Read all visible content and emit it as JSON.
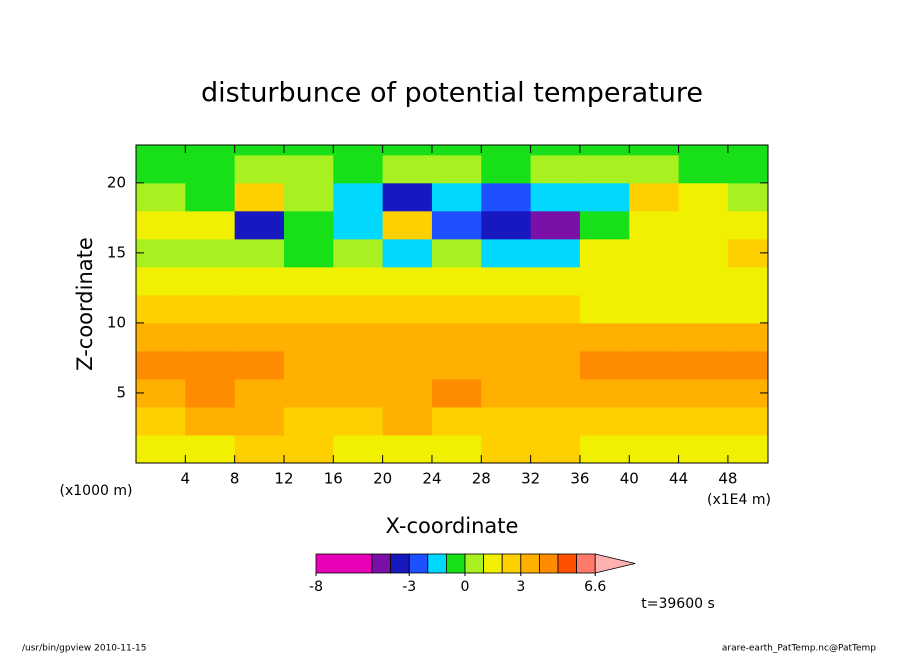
{
  "chart_data": {
    "type": "contour",
    "title": "disturbunce of potential temperature",
    "x_label": "X-coordinate",
    "y_label": "Z-coordinate",
    "x_unit": "(x1E4 m)",
    "y_unit": "(x1000 m)",
    "annotation": "t=39600 s",
    "footer_left": "/usr/bin/gpview  2010-11-15",
    "footer_right": "arare-earth_PatTemp.nc@PatTemp",
    "xlim": [
      0,
      51.25
    ],
    "ylim": [
      0,
      22.7
    ],
    "xticks": [
      4,
      8,
      12,
      16,
      20,
      24,
      28,
      32,
      36,
      40,
      44,
      48
    ],
    "yticks": [
      5,
      10,
      15,
      20
    ],
    "x_edges": [
      0,
      4,
      8,
      12,
      16,
      20,
      24,
      28,
      32,
      36,
      40,
      44,
      48,
      51.25
    ],
    "y_edges": [
      0,
      2,
      4,
      6,
      8,
      10,
      12,
      14,
      16,
      18,
      20,
      22,
      22.7
    ],
    "z": [
      [
        1.5,
        1.5,
        2,
        2,
        1.5,
        1.5,
        1.5,
        2,
        2,
        1.5,
        1.5,
        1.5,
        1.5
      ],
      [
        2.5,
        3,
        3,
        2.5,
        2.5,
        3,
        2.5,
        2.5,
        2.5,
        2.5,
        2.5,
        2.5,
        2.5
      ],
      [
        3.5,
        4,
        3.5,
        3.5,
        3.5,
        3.5,
        4,
        3.5,
        3.5,
        3.5,
        3.5,
        3.5,
        3.5
      ],
      [
        4.5,
        4,
        4,
        3.5,
        3.5,
        3.5,
        3.5,
        3.5,
        3.5,
        4,
        4,
        4,
        4
      ],
      [
        3.5,
        3.5,
        3.5,
        3.5,
        3.5,
        3.5,
        3.5,
        3.5,
        3.5,
        3.5,
        3.5,
        3,
        3
      ],
      [
        2.5,
        2.5,
        2.5,
        2.5,
        2.5,
        2.5,
        2.5,
        2.5,
        2.5,
        1.5,
        1.5,
        1.5,
        1.5
      ],
      [
        1.5,
        1.5,
        1.5,
        1.5,
        1.5,
        1.5,
        1.5,
        1.5,
        1.5,
        1.5,
        1.5,
        1.5,
        1.5
      ],
      [
        0.5,
        0.5,
        0.5,
        -0.5,
        0.5,
        -1.5,
        0.5,
        -1.5,
        -1.5,
        1.5,
        1.5,
        1.5,
        2.5
      ],
      [
        1.5,
        1.5,
        -3.5,
        -0.5,
        -1.5,
        2.5,
        -2.5,
        -3.5,
        -4.5,
        -0.5,
        1.5,
        1.5,
        1.5
      ],
      [
        0.5,
        -0.5,
        2.5,
        0.5,
        -1.5,
        -3.5,
        -1.5,
        -2.5,
        -1.5,
        -1.5,
        2.5,
        1.5,
        0.5
      ],
      [
        -0.5,
        -0.5,
        0.5,
        0.5,
        -0.5,
        0.5,
        0.5,
        -0.5,
        0.5,
        0.5,
        0.5,
        -0.5,
        -0.5
      ],
      [
        -0.5,
        -0.5,
        -0.5,
        -0.5,
        -0.5,
        -0.5,
        -0.5,
        -0.5,
        -0.5,
        -0.5,
        -0.5,
        -0.5,
        -0.5
      ]
    ],
    "levels": [
      -8,
      -5,
      -4,
      -3,
      -2,
      -1,
      0,
      1,
      2,
      3,
      4,
      5,
      6,
      6.6
    ],
    "colors": [
      "#e800b8",
      "#7a10a8",
      "#1818c0",
      "#1e50ff",
      "#00d8ff",
      "#18e018",
      "#a8f020",
      "#f0f000",
      "#ffd000",
      "#ffb000",
      "#ff8c00",
      "#ff5000",
      "#ff7a6a"
    ],
    "over_color": "#ffb0b0",
    "colorbar_ticks": [
      -8,
      -3,
      0,
      3,
      6.6
    ]
  }
}
